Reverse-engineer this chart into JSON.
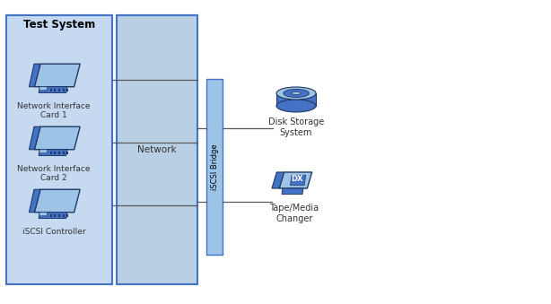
{
  "bg_color": "#ffffff",
  "box1_color": "#c5d9f1",
  "box1_border": "#4472c4",
  "box2_color": "#b8cfe4",
  "box2_border": "#4472c4",
  "bridge_color": "#9dc3e6",
  "bridge_border": "#4472c4",
  "nic_body_color": "#4472c4",
  "nic_light_color": "#9dc3e6",
  "nic_dark_color": "#1f3864",
  "disk_top_color": "#9dc3e6",
  "disk_body_color": "#4472c4",
  "disk_edge_color": "#1f3864",
  "tape_body_color": "#4472c4",
  "tape_light_color": "#9dc3e6",
  "tape_edge_color": "#1f3864",
  "line_color": "#595959",
  "title": "Test System",
  "label_nic1": "Network Interface\nCard 1",
  "label_nic2": "Network Interface\nCard 2",
  "label_iscsi_ctrl": "iSCSI Controller",
  "label_network": "Network",
  "label_bridge": "iSCSI Bridge",
  "label_disk": "Disk Storage\nSystem",
  "label_tape": "Tape/Media\nChanger",
  "title_fontsize": 8.5,
  "label_fontsize": 7.0,
  "figsize": [
    6.14,
    3.39
  ],
  "dpi": 100
}
